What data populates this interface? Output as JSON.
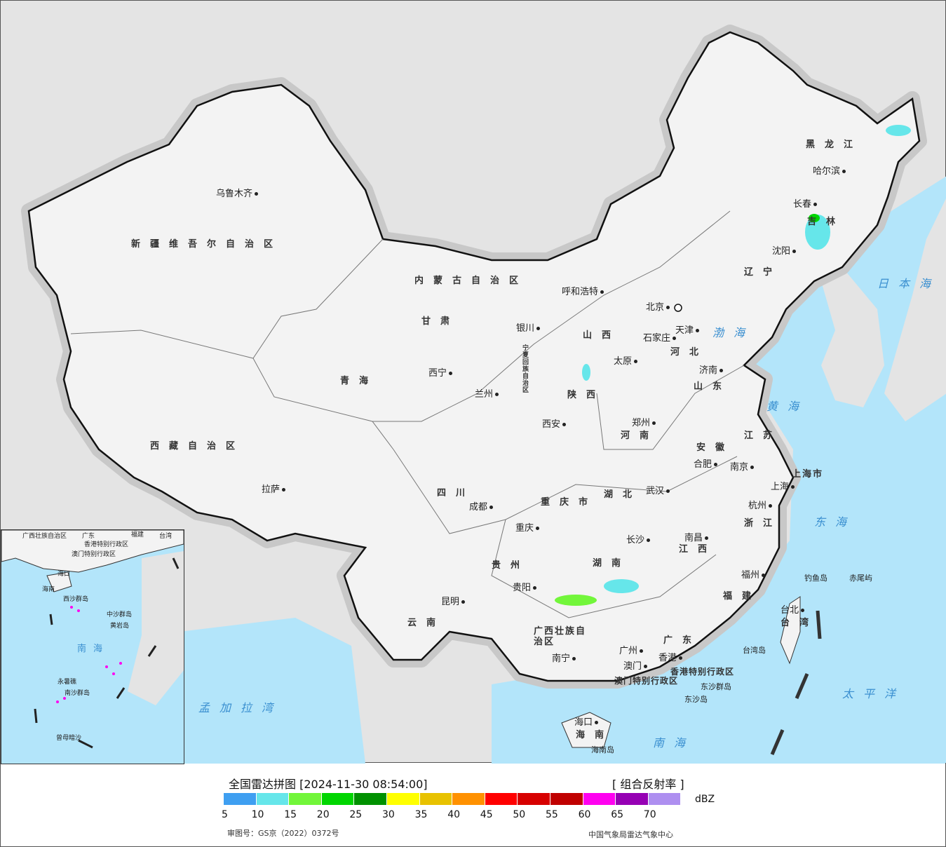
{
  "title": "全国雷达拼图 [2024-11-30 08:54:00]",
  "product": "[ 组合反射率 ]",
  "unit": "dBZ",
  "approval": "审图号：GS京（2022）0372号",
  "credit": "中国气象局雷达气象中心",
  "legend": {
    "colors": [
      "#3f9ff1",
      "#66e6ea",
      "#72f63a",
      "#00d600",
      "#009100",
      "#ffff00",
      "#e8c200",
      "#ff9100",
      "#ff0000",
      "#d70000",
      "#c00000",
      "#ff00f0",
      "#9600b4",
      "#ae8ff0"
    ],
    "ticks": [
      "5",
      "10",
      "15",
      "20",
      "25",
      "30",
      "35",
      "40",
      "45",
      "50",
      "55",
      "60",
      "65",
      "70"
    ]
  },
  "cities": [
    "乌鲁木齐",
    "拉萨",
    "西宁",
    "兰州",
    "银川",
    "呼和浩特",
    "北京",
    "天津",
    "石家庄",
    "太原",
    "济南",
    "郑州",
    "西安",
    "成都",
    "重庆",
    "贵阳",
    "昆明",
    "武汉",
    "长沙",
    "南昌",
    "合肥",
    "南京",
    "上海",
    "杭州",
    "福州",
    "广州",
    "南宁",
    "海口",
    "香港",
    "澳门",
    "台北",
    "沈阳",
    "长春",
    "哈尔滨"
  ],
  "provinces": [
    "新疆维吾尔自治区",
    "西藏自治区",
    "青海",
    "甘肃",
    "内蒙古自治区",
    "黑龙江",
    "吉林",
    "辽宁",
    "河北",
    "山西",
    "山东",
    "陕西",
    "河南",
    "江苏",
    "安徽",
    "湖北",
    "四川",
    "重庆市",
    "贵州",
    "湖南",
    "江西",
    "浙江",
    "福建",
    "云南",
    "广西壮族自治区",
    "广东",
    "海南",
    "台湾",
    "上海市",
    "宁夏回族自治区",
    "香港特别行政区",
    "澳门特别行政区"
  ],
  "seas": [
    "日本海",
    "渤海",
    "黄海",
    "东海",
    "太平洋",
    "南海",
    "孟加拉湾"
  ],
  "islands": [
    "钓鱼岛",
    "赤尾屿",
    "台湾岛",
    "东沙群岛",
    "东沙岛",
    "海南岛"
  ],
  "inset": [
    "广西壮族自治区",
    "广东",
    "福建",
    "台湾",
    "香港特别行政区",
    "澳门特别行政区",
    "海口",
    "海南",
    "西沙群岛",
    "中沙群岛",
    "黄岩岛",
    "南海",
    "永暑礁",
    "南沙群岛",
    "曾母暗沙"
  ]
}
